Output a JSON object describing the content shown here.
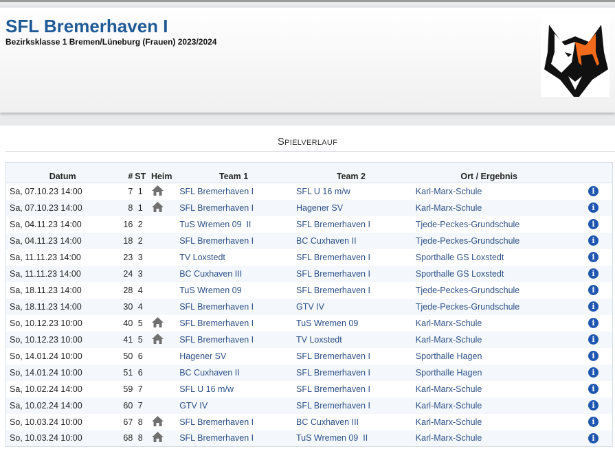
{
  "header": {
    "title": "SFL Bremerhaven I",
    "subtitle": "Bezirksklasse 1 Bremen/Lüneburg (Frauen) 2023/2024"
  },
  "section": {
    "title": "Spielverlauf"
  },
  "table": {
    "columns": [
      "Datum",
      "#",
      "ST",
      "Heim",
      "Team 1",
      "Team 2",
      "Ort / Ergebnis",
      ""
    ],
    "rows": [
      {
        "date": "Sa, 07.10.23 14:00",
        "nr": "7",
        "st": "1",
        "home": true,
        "team1": "SFL Bremerhaven I",
        "team2": "SFL U 16 m/w",
        "venue": "Karl-Marx-Schule"
      },
      {
        "date": "Sa, 07.10.23 14:00",
        "nr": "8",
        "st": "1",
        "home": true,
        "team1": "SFL Bremerhaven I",
        "team2": "Hagener SV",
        "venue": "Karl-Marx-Schule"
      },
      {
        "date": "Sa, 04.11.23 14:00",
        "nr": "16",
        "st": "2",
        "home": false,
        "team1": "TuS Wremen 09  II",
        "team2": "SFL Bremerhaven I",
        "venue": "Tjede-Peckes-Grundschule"
      },
      {
        "date": "Sa, 04.11.23 14:00",
        "nr": "18",
        "st": "2",
        "home": false,
        "team1": "SFL Bremerhaven I",
        "team2": "BC Cuxhaven II",
        "venue": "Tjede-Peckes-Grundschule"
      },
      {
        "date": "Sa, 11.11.23 14:00",
        "nr": "23",
        "st": "3",
        "home": false,
        "team1": "TV Loxstedt",
        "team2": "SFL Bremerhaven I",
        "venue": "Sporthalle GS Loxstedt"
      },
      {
        "date": "Sa, 11.11.23 14:00",
        "nr": "24",
        "st": "3",
        "home": false,
        "team1": "BC Cuxhaven III",
        "team2": "SFL Bremerhaven I",
        "venue": "Sporthalle GS Loxstedt"
      },
      {
        "date": "Sa, 18.11.23 14:00",
        "nr": "28",
        "st": "4",
        "home": false,
        "team1": "TuS Wremen 09",
        "team2": "SFL Bremerhaven I",
        "venue": "Tjede-Peckes-Grundschule"
      },
      {
        "date": "Sa, 18.11.23 14:00",
        "nr": "30",
        "st": "4",
        "home": false,
        "team1": "SFL Bremerhaven I",
        "team2": "GTV IV",
        "venue": "Tjede-Peckes-Grundschule"
      },
      {
        "date": "So, 10.12.23 10:00",
        "nr": "40",
        "st": "5",
        "home": true,
        "team1": "SFL Bremerhaven I",
        "team2": "TuS Wremen 09",
        "venue": "Karl-Marx-Schule"
      },
      {
        "date": "So, 10.12.23 10:00",
        "nr": "41",
        "st": "5",
        "home": true,
        "team1": "SFL Bremerhaven I",
        "team2": "TV Loxstedt",
        "venue": "Karl-Marx-Schule"
      },
      {
        "date": "So, 14.01.24 10:00",
        "nr": "50",
        "st": "6",
        "home": false,
        "team1": "Hagener SV",
        "team2": "SFL Bremerhaven I",
        "venue": "Sporthalle Hagen"
      },
      {
        "date": "So, 14.01.24 10:00",
        "nr": "51",
        "st": "6",
        "home": false,
        "team1": "BC Cuxhaven II",
        "team2": "SFL Bremerhaven I",
        "venue": "Sporthalle Hagen"
      },
      {
        "date": "Sa, 10.02.24 14:00",
        "nr": "59",
        "st": "7",
        "home": false,
        "team1": "SFL U 16 m/w",
        "team2": "SFL Bremerhaven I",
        "venue": "Karl-Marx-Schule"
      },
      {
        "date": "Sa, 10.02.24 14:00",
        "nr": "60",
        "st": "7",
        "home": false,
        "team1": "GTV IV",
        "team2": "SFL Bremerhaven I",
        "venue": "Karl-Marx-Schule"
      },
      {
        "date": "So, 10.03.24 10:00",
        "nr": "67",
        "st": "8",
        "home": true,
        "team1": "SFL Bremerhaven I",
        "team2": "BC Cuxhaven III",
        "venue": "Karl-Marx-Schule"
      },
      {
        "date": "So, 10.03.24 10:00",
        "nr": "68",
        "st": "8",
        "home": true,
        "team1": "SFL Bremerhaven I",
        "team2": "TuS Wremen 09  II",
        "venue": "Karl-Marx-Schule"
      }
    ]
  },
  "colors": {
    "title": "#1f5a96",
    "link": "#2d4f86",
    "info": "#1f56b0",
    "logo_orange": "#f26a1b"
  }
}
